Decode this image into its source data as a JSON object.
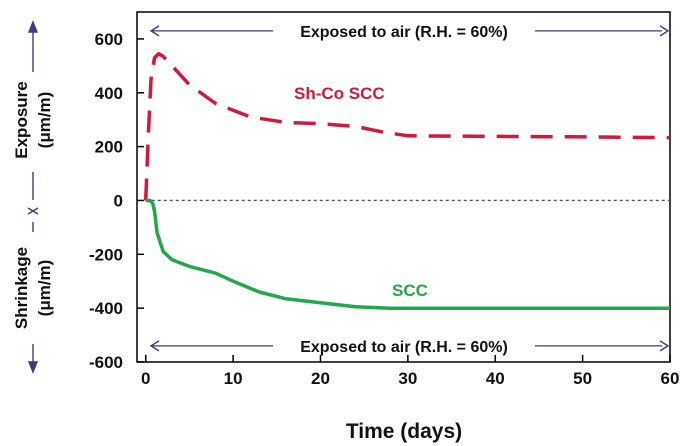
{
  "chart_data": {
    "type": "line",
    "xlabel": "Time (days)",
    "ylabel_top": [
      "Exposure",
      "(μm/m)"
    ],
    "ylabel_bottom": [
      "Shrinkage",
      "(μm/m)"
    ],
    "xlim": [
      -1,
      60
    ],
    "ylim": [
      -600,
      700
    ],
    "x_ticks": [
      0,
      10,
      20,
      30,
      40,
      50,
      60
    ],
    "x_tick_labels": [
      "0",
      "10",
      "20",
      "30",
      "40",
      "50",
      "60"
    ],
    "y_ticks": [
      600,
      400,
      200,
      0,
      -200,
      -400,
      -600
    ],
    "y_tick_labels": [
      "600",
      "400",
      "200",
      "0",
      "-200",
      "-400",
      "-600"
    ],
    "zero_line": true,
    "annotations": [
      {
        "text": "Exposed to air (R.H. = 60%)",
        "y": 630
      },
      {
        "text": "Exposed to air (R.H. = 60%)",
        "y": -540
      }
    ],
    "series": [
      {
        "name": "Sh-Co SCC",
        "color": "#d4173a",
        "style": "dashed",
        "x": [
          0,
          0.3,
          0.6,
          1,
          1.5,
          2,
          3,
          5,
          8,
          12,
          16,
          20,
          24,
          27,
          30,
          40,
          50,
          60
        ],
        "y": [
          0,
          250,
          450,
          530,
          545,
          535,
          500,
          430,
          360,
          310,
          290,
          285,
          275,
          255,
          240,
          238,
          236,
          233
        ]
      },
      {
        "name": "SCC",
        "color": "#22a84a",
        "style": "solid",
        "x": [
          0,
          0.5,
          0.8,
          1,
          1.3,
          2,
          3,
          5,
          8,
          10,
          13,
          16,
          20,
          24,
          28,
          40,
          50,
          60
        ],
        "y": [
          0,
          0,
          -10,
          -40,
          -120,
          -190,
          -220,
          -245,
          -270,
          -300,
          -340,
          -365,
          -380,
          -395,
          -400,
          -400,
          -400,
          -400
        ]
      }
    ]
  }
}
